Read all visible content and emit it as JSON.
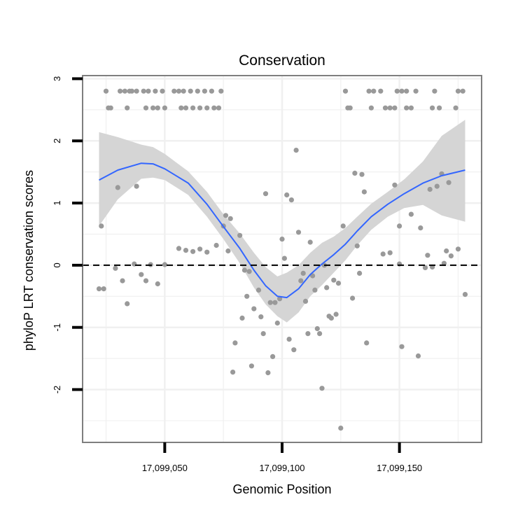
{
  "chart_data": {
    "type": "scatter",
    "title": "Conservation",
    "xlabel": "Genomic Position",
    "ylabel": "phyloP LRT conservation scores",
    "xlim": [
      17099015,
      17099185
    ],
    "ylim": [
      -2.85,
      3.05
    ],
    "x_ticks": [
      {
        "value": 17099050,
        "label": "17,099,050"
      },
      {
        "value": 17099100,
        "label": "17,099,100"
      },
      {
        "value": 17099150,
        "label": "17,099,150"
      }
    ],
    "y_ticks": [
      {
        "value": -2,
        "label": "-2"
      },
      {
        "value": -1,
        "label": "-1"
      },
      {
        "value": 0,
        "label": "0"
      },
      {
        "value": 1,
        "label": "1"
      },
      {
        "value": 2,
        "label": "2"
      },
      {
        "value": 3,
        "label": "3"
      }
    ],
    "grid": true,
    "reference_line": {
      "y": 0,
      "style": "dashed",
      "color": "#000000"
    },
    "colors": {
      "points": "#999999",
      "smooth": "#3366ff",
      "band": "#d3d3d3",
      "panel_border": "#7f7f7f",
      "grid": "#f0f0f0"
    },
    "points": [
      [
        17099025,
        2.8
      ],
      [
        17099031,
        2.8
      ],
      [
        17099033,
        2.8
      ],
      [
        17099035,
        2.8
      ],
      [
        17099036,
        2.8
      ],
      [
        17099038,
        2.8
      ],
      [
        17099041,
        2.8
      ],
      [
        17099043,
        2.8
      ],
      [
        17099046,
        2.8
      ],
      [
        17099049,
        2.8
      ],
      [
        17099054,
        2.8
      ],
      [
        17099056,
        2.8
      ],
      [
        17099058,
        2.8
      ],
      [
        17099061,
        2.8
      ],
      [
        17099064,
        2.8
      ],
      [
        17099067,
        2.8
      ],
      [
        17099070,
        2.8
      ],
      [
        17099074,
        2.8
      ],
      [
        17099026,
        2.53
      ],
      [
        17099027,
        2.53
      ],
      [
        17099034,
        2.53
      ],
      [
        17099042,
        2.53
      ],
      [
        17099045,
        2.53
      ],
      [
        17099047,
        2.53
      ],
      [
        17099050,
        2.53
      ],
      [
        17099057,
        2.53
      ],
      [
        17099059,
        2.53
      ],
      [
        17099062,
        2.53
      ],
      [
        17099065,
        2.53
      ],
      [
        17099068,
        2.53
      ],
      [
        17099071,
        2.53
      ],
      [
        17099073,
        2.53
      ],
      [
        17099127,
        2.8
      ],
      [
        17099137,
        2.8
      ],
      [
        17099139,
        2.8
      ],
      [
        17099142,
        2.8
      ],
      [
        17099149,
        2.8
      ],
      [
        17099151,
        2.8
      ],
      [
        17099153,
        2.8
      ],
      [
        17099157,
        2.8
      ],
      [
        17099165,
        2.8
      ],
      [
        17099175,
        2.8
      ],
      [
        17099177,
        2.8
      ],
      [
        17099128,
        2.53
      ],
      [
        17099129,
        2.53
      ],
      [
        17099138,
        2.53
      ],
      [
        17099144,
        2.53
      ],
      [
        17099146,
        2.53
      ],
      [
        17099148,
        2.53
      ],
      [
        17099153,
        2.53
      ],
      [
        17099155,
        2.53
      ],
      [
        17099164,
        2.53
      ],
      [
        17099167,
        2.53
      ],
      [
        17099174,
        2.53
      ],
      [
        17099022,
        -0.38
      ],
      [
        17099024,
        -0.38
      ],
      [
        17099023,
        0.63
      ],
      [
        17099029,
        -0.05
      ],
      [
        17099030,
        1.25
      ],
      [
        17099032,
        -0.25
      ],
      [
        17099034,
        -0.62
      ],
      [
        17099037,
        0.02
      ],
      [
        17099038,
        1.27
      ],
      [
        17099040,
        -0.15
      ],
      [
        17099042,
        -0.25
      ],
      [
        17099044,
        0.01
      ],
      [
        17099047,
        -0.3
      ],
      [
        17099050,
        0.01
      ],
      [
        17099056,
        0.27
      ],
      [
        17099059,
        0.24
      ],
      [
        17099062,
        0.22
      ],
      [
        17099065,
        0.26
      ],
      [
        17099068,
        0.21
      ],
      [
        17099072,
        0.32
      ],
      [
        17099075,
        0.63
      ],
      [
        17099076,
        0.8
      ],
      [
        17099077,
        0.23
      ],
      [
        17099078,
        0.75
      ],
      [
        17099079,
        -1.72
      ],
      [
        17099080,
        -1.25
      ],
      [
        17099082,
        0.48
      ],
      [
        17099083,
        -0.85
      ],
      [
        17099084,
        -0.08
      ],
      [
        17099085,
        -0.5
      ],
      [
        17099086,
        -0.1
      ],
      [
        17099087,
        -1.62
      ],
      [
        17099088,
        -0.7
      ],
      [
        17099090,
        -0.4
      ],
      [
        17099091,
        -0.83
      ],
      [
        17099092,
        -1.1
      ],
      [
        17099093,
        1.15
      ],
      [
        17099094,
        -1.73
      ],
      [
        17099095,
        -0.6
      ],
      [
        17099096,
        -1.47
      ],
      [
        17099097,
        -0.6
      ],
      [
        17099098,
        -0.93
      ],
      [
        17099099,
        -0.54
      ],
      [
        17099100,
        0.42
      ],
      [
        17099101,
        0.11
      ],
      [
        17099102,
        1.13
      ],
      [
        17099103,
        -1.19
      ],
      [
        17099104,
        1.05
      ],
      [
        17099105,
        -1.36
      ],
      [
        17099106,
        1.85
      ],
      [
        17099107,
        0.53
      ],
      [
        17099108,
        -0.25
      ],
      [
        17099109,
        -0.13
      ],
      [
        17099110,
        -0.58
      ],
      [
        17099111,
        -1.1
      ],
      [
        17099112,
        0.37
      ],
      [
        17099113,
        -0.17
      ],
      [
        17099114,
        -0.4
      ],
      [
        17099115,
        -1.02
      ],
      [
        17099116,
        -1.1
      ],
      [
        17099117,
        -1.98
      ],
      [
        17099118,
        0.0
      ],
      [
        17099119,
        -0.36
      ],
      [
        17099120,
        -0.82
      ],
      [
        17099121,
        -0.85
      ],
      [
        17099122,
        -0.24
      ],
      [
        17099123,
        -0.79
      ],
      [
        17099124,
        -0.29
      ],
      [
        17099125,
        -2.62
      ],
      [
        17099126,
        0.63
      ],
      [
        17099130,
        -0.53
      ],
      [
        17099131,
        1.48
      ],
      [
        17099132,
        0.31
      ],
      [
        17099133,
        -0.13
      ],
      [
        17099134,
        1.46
      ],
      [
        17099135,
        1.18
      ],
      [
        17099136,
        -1.25
      ],
      [
        17099143,
        0.18
      ],
      [
        17099146,
        0.2
      ],
      [
        17099148,
        1.29
      ],
      [
        17099150,
        0.63
      ],
      [
        17099150,
        0.02
      ],
      [
        17099151,
        -1.31
      ],
      [
        17099155,
        0.82
      ],
      [
        17099158,
        -1.46
      ],
      [
        17099159,
        0.6
      ],
      [
        17099161,
        -0.04
      ],
      [
        17099162,
        0.16
      ],
      [
        17099163,
        1.22
      ],
      [
        17099164,
        -0.03
      ],
      [
        17099166,
        1.27
      ],
      [
        17099168,
        1.47
      ],
      [
        17099169,
        0.03
      ],
      [
        17099170,
        0.23
      ],
      [
        17099171,
        1.33
      ],
      [
        17099172,
        0.15
      ],
      [
        17099175,
        0.26
      ],
      [
        17099178,
        -0.47
      ]
    ],
    "smooth": [
      [
        17099022,
        1.37
      ],
      [
        17099030,
        1.53
      ],
      [
        17099040,
        1.64
      ],
      [
        17099045,
        1.63
      ],
      [
        17099050,
        1.55
      ],
      [
        17099060,
        1.32
      ],
      [
        17099068,
        0.98
      ],
      [
        17099075,
        0.62
      ],
      [
        17099082,
        0.27
      ],
      [
        17099088,
        -0.08
      ],
      [
        17099093,
        -0.33
      ],
      [
        17099098,
        -0.5
      ],
      [
        17099102,
        -0.52
      ],
      [
        17099107,
        -0.38
      ],
      [
        17099112,
        -0.15
      ],
      [
        17099117,
        0.02
      ],
      [
        17099122,
        0.17
      ],
      [
        17099127,
        0.34
      ],
      [
        17099132,
        0.55
      ],
      [
        17099138,
        0.78
      ],
      [
        17099145,
        0.98
      ],
      [
        17099152,
        1.15
      ],
      [
        17099160,
        1.32
      ],
      [
        17099168,
        1.44
      ],
      [
        17099178,
        1.53
      ]
    ],
    "band": [
      [
        17099022,
        0.63,
        2.14
      ],
      [
        17099030,
        1.06,
        2.06
      ],
      [
        17099040,
        1.39,
        1.94
      ],
      [
        17099045,
        1.41,
        1.9
      ],
      [
        17099050,
        1.37,
        1.79
      ],
      [
        17099060,
        1.13,
        1.51
      ],
      [
        17099068,
        0.78,
        1.18
      ],
      [
        17099075,
        0.42,
        0.82
      ],
      [
        17099082,
        0.03,
        0.51
      ],
      [
        17099088,
        -0.36,
        0.2
      ],
      [
        17099093,
        -0.63,
        -0.03
      ],
      [
        17099098,
        -0.82,
        -0.18
      ],
      [
        17099102,
        -0.92,
        -0.12
      ],
      [
        17099107,
        -0.76,
        0.0
      ],
      [
        17099112,
        -0.5,
        0.2
      ],
      [
        17099117,
        -0.32,
        0.36
      ],
      [
        17099122,
        -0.12,
        0.46
      ],
      [
        17099127,
        0.08,
        0.6
      ],
      [
        17099132,
        0.32,
        0.78
      ],
      [
        17099138,
        0.57,
        0.99
      ],
      [
        17099145,
        0.78,
        1.18
      ],
      [
        17099152,
        0.92,
        1.38
      ],
      [
        17099160,
        0.97,
        1.67
      ],
      [
        17099168,
        0.8,
        2.08
      ],
      [
        17099178,
        0.7,
        2.34
      ]
    ]
  }
}
